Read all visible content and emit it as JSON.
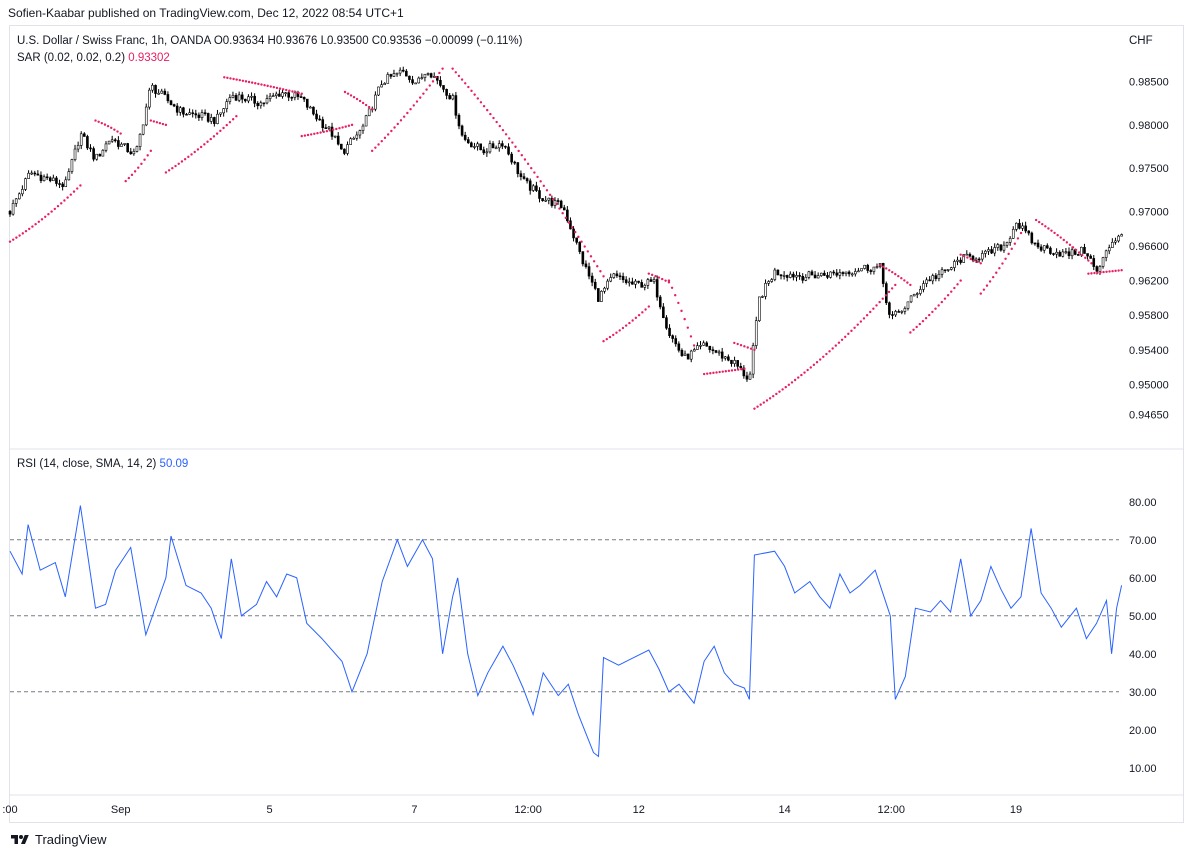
{
  "header": {
    "publisher": "Sofien-Kaabar published on TradingView.com, Dec 12, 2022 08:54 UTC+1"
  },
  "legend": {
    "symbol": "U.S. Dollar / Swiss Franc, 1h, OANDA",
    "ohlc": "O0.93634  H0.93676  L0.93500  C0.93536  −0.00099 (−0.11%)",
    "sar_label": "SAR (0.02, 0.02, 0.2)",
    "sar_value": "0.93302",
    "rsi_label": "RSI (14, close, SMA, 14, 2)",
    "rsi_value": "50.09"
  },
  "currency": "CHF",
  "brand": {
    "name": "TradingView",
    "logo_icon": "tradingview-logo-icon"
  },
  "colors": {
    "candle": "#000000",
    "sar": "#e91e63",
    "rsi": "#2962ff",
    "guide": "#787b86",
    "border": "#e0e3eb"
  },
  "chart_data": [
    {
      "type": "candlestick",
      "title": "U.S. Dollar / Swiss Franc, 1h, OANDA",
      "y_ticks": [
        "0.98500",
        "0.98000",
        "0.97500",
        "0.97000",
        "0.96600",
        "0.96200",
        "0.95800",
        "0.95400",
        "0.95000",
        "0.94650"
      ],
      "ylim": [
        0.9445,
        0.9875
      ],
      "x_ticks": [
        ":00",
        "Sep",
        "5",
        "7",
        "12:00",
        "12",
        "14",
        "12:00",
        "19"
      ],
      "close_path": [
        [
          0,
          0.97
        ],
        [
          0.02,
          0.9745
        ],
        [
          0.055,
          0.973
        ],
        [
          0.07,
          0.979
        ],
        [
          0.085,
          0.976
        ],
        [
          0.1,
          0.9785
        ],
        [
          0.125,
          0.9765
        ],
        [
          0.14,
          0.9845
        ],
        [
          0.17,
          0.9815
        ],
        [
          0.19,
          0.981
        ],
        [
          0.205,
          0.9805
        ],
        [
          0.22,
          0.9835
        ],
        [
          0.25,
          0.9825
        ],
        [
          0.27,
          0.9838
        ],
        [
          0.29,
          0.983
        ],
        [
          0.3,
          0.9815
        ],
        [
          0.32,
          0.979
        ],
        [
          0.33,
          0.9768
        ],
        [
          0.35,
          0.9795
        ],
        [
          0.37,
          0.985
        ],
        [
          0.39,
          0.9862
        ],
        [
          0.405,
          0.9848
        ],
        [
          0.415,
          0.9865
        ],
        [
          0.44,
          0.983
        ],
        [
          0.45,
          0.9785
        ],
        [
          0.47,
          0.977
        ],
        [
          0.49,
          0.978
        ],
        [
          0.51,
          0.9735
        ],
        [
          0.53,
          0.9715
        ],
        [
          0.55,
          0.9705
        ],
        [
          0.57,
          0.964
        ],
        [
          0.585,
          0.96
        ],
        [
          0.6,
          0.9625
        ],
        [
          0.62,
          0.9615
        ],
        [
          0.64,
          0.9618
        ],
        [
          0.655,
          0.956
        ],
        [
          0.67,
          0.953
        ],
        [
          0.69,
          0.9545
        ],
        [
          0.72,
          0.9525
        ],
        [
          0.735,
          0.9505
        ],
        [
          0.745,
          0.96
        ],
        [
          0.76,
          0.963
        ],
        [
          0.79,
          0.9625
        ],
        [
          0.82,
          0.9628
        ],
        [
          0.85,
          0.9635
        ],
        [
          0.865,
          0.9635
        ],
        [
          0.875,
          0.9575
        ],
        [
          0.89,
          0.959
        ],
        [
          0.91,
          0.962
        ],
        [
          0.93,
          0.963
        ],
        [
          0.945,
          0.9645
        ],
        [
          0.97,
          0.965
        ],
        [
          0.99,
          0.9662
        ],
        [
          1.0,
          0.9688
        ],
        [
          1.02,
          0.966
        ],
        [
          1.05,
          0.965
        ],
        [
          1.07,
          0.9655
        ],
        [
          1.08,
          0.9628
        ],
        [
          1.095,
          0.9665
        ],
        [
          1.105,
          0.9675
        ]
      ]
    },
    {
      "type": "scatter",
      "title": "SAR (0.02, 0.02, 0.2)",
      "value": "0.93302",
      "segments": [
        {
          "from": [
            0,
            0.9665
          ],
          "to": [
            0.07,
            0.973
          ],
          "curve": 0.0015
        },
        {
          "from": [
            0.085,
            0.9805
          ],
          "to": [
            0.11,
            0.979
          ],
          "curve": -0.0004
        },
        {
          "from": [
            0.115,
            0.9735
          ],
          "to": [
            0.14,
            0.977
          ],
          "curve": 0.0008
        },
        {
          "from": [
            0.14,
            0.9805
          ],
          "to": [
            0.155,
            0.98
          ],
          "curve": 0
        },
        {
          "from": [
            0.155,
            0.9745
          ],
          "to": [
            0.225,
            0.981
          ],
          "curve": 0.0012
        },
        {
          "from": [
            0.213,
            0.9855
          ],
          "to": [
            0.29,
            0.9836
          ],
          "curve": -0.0003
        },
        {
          "from": [
            0.29,
            0.9787
          ],
          "to": [
            0.34,
            0.98
          ],
          "curve": 0.0003
        },
        {
          "from": [
            0.333,
            0.9838
          ],
          "to": [
            0.36,
            0.9818
          ],
          "curve": -0.0003
        },
        {
          "from": [
            0.36,
            0.977
          ],
          "to": [
            0.43,
            0.9865
          ],
          "curve": 0.0015
        },
        {
          "from": [
            0.44,
            0.9865
          ],
          "to": [
            0.59,
            0.9625
          ],
          "curve": -0.004
        },
        {
          "from": [
            0.59,
            0.955
          ],
          "to": [
            0.635,
            0.959
          ],
          "curve": 0.0008
        },
        {
          "from": [
            0.635,
            0.9628
          ],
          "to": [
            0.655,
            0.9618
          ],
          "curve": -0.0002
        },
        {
          "from": [
            0.655,
            0.962
          ],
          "to": [
            0.68,
            0.9545
          ],
          "curve": -0.001
        },
        {
          "from": [
            0.69,
            0.9512
          ],
          "to": [
            0.73,
            0.9518
          ],
          "curve": 0
        },
        {
          "from": [
            0.72,
            0.9548
          ],
          "to": [
            0.74,
            0.954
          ],
          "curve": 0
        },
        {
          "from": [
            0.74,
            0.9472
          ],
          "to": [
            0.88,
            0.9615
          ],
          "curve": 0.004
        },
        {
          "from": [
            0.865,
            0.9638
          ],
          "to": [
            0.895,
            0.9615
          ],
          "curve": -0.0004
        },
        {
          "from": [
            0.895,
            0.956
          ],
          "to": [
            0.945,
            0.962
          ],
          "curve": 0.001
        },
        {
          "from": [
            0.945,
            0.965
          ],
          "to": [
            0.965,
            0.964
          ],
          "curve": 0
        },
        {
          "from": [
            0.965,
            0.9605
          ],
          "to": [
            1.005,
            0.9675
          ],
          "curve": 0.0012
        },
        {
          "from": [
            1.02,
            0.969
          ],
          "to": [
            1.075,
            0.964
          ],
          "curve": -0.0008
        },
        {
          "from": [
            1.072,
            0.9628
          ],
          "to": [
            1.105,
            0.9632
          ],
          "curve": 0
        }
      ]
    },
    {
      "type": "line",
      "title": "RSI (14, close, SMA, 14, 2)",
      "value": "50.09",
      "y_ticks": [
        "80.00",
        "70.00",
        "60.00",
        "50.00",
        "40.00",
        "30.00",
        "20.00",
        "10.00"
      ],
      "ylim": [
        6,
        86
      ],
      "reference_lines": [
        70,
        50,
        30
      ],
      "points": [
        [
          0,
          67
        ],
        [
          0.012,
          61
        ],
        [
          0.018,
          74
        ],
        [
          0.03,
          62
        ],
        [
          0.045,
          64
        ],
        [
          0.055,
          55
        ],
        [
          0.07,
          79
        ],
        [
          0.085,
          52
        ],
        [
          0.095,
          53
        ],
        [
          0.105,
          62
        ],
        [
          0.12,
          68
        ],
        [
          0.135,
          45
        ],
        [
          0.155,
          60
        ],
        [
          0.16,
          71
        ],
        [
          0.175,
          58
        ],
        [
          0.19,
          56
        ],
        [
          0.2,
          52
        ],
        [
          0.21,
          44
        ],
        [
          0.22,
          65
        ],
        [
          0.23,
          50
        ],
        [
          0.245,
          53
        ],
        [
          0.255,
          59
        ],
        [
          0.265,
          55
        ],
        [
          0.275,
          61
        ],
        [
          0.285,
          60
        ],
        [
          0.295,
          48
        ],
        [
          0.31,
          44
        ],
        [
          0.33,
          38
        ],
        [
          0.34,
          30
        ],
        [
          0.355,
          40
        ],
        [
          0.37,
          59
        ],
        [
          0.385,
          70
        ],
        [
          0.395,
          63
        ],
        [
          0.41,
          70
        ],
        [
          0.42,
          65
        ],
        [
          0.43,
          40
        ],
        [
          0.44,
          55
        ],
        [
          0.445,
          60
        ],
        [
          0.455,
          40
        ],
        [
          0.465,
          29
        ],
        [
          0.475,
          35
        ],
        [
          0.49,
          42
        ],
        [
          0.5,
          37
        ],
        [
          0.51,
          31
        ],
        [
          0.52,
          24
        ],
        [
          0.53,
          35
        ],
        [
          0.545,
          29
        ],
        [
          0.555,
          32
        ],
        [
          0.565,
          24
        ],
        [
          0.58,
          14
        ],
        [
          0.585,
          13
        ],
        [
          0.59,
          39
        ],
        [
          0.605,
          37
        ],
        [
          0.62,
          39
        ],
        [
          0.635,
          41
        ],
        [
          0.645,
          36
        ],
        [
          0.655,
          30
        ],
        [
          0.665,
          32
        ],
        [
          0.68,
          27
        ],
        [
          0.69,
          38
        ],
        [
          0.7,
          42
        ],
        [
          0.71,
          35
        ],
        [
          0.72,
          32
        ],
        [
          0.73,
          31
        ],
        [
          0.735,
          28
        ],
        [
          0.74,
          66
        ],
        [
          0.76,
          67
        ],
        [
          0.77,
          63
        ],
        [
          0.78,
          56
        ],
        [
          0.795,
          59
        ],
        [
          0.805,
          55
        ],
        [
          0.815,
          52
        ],
        [
          0.825,
          61
        ],
        [
          0.835,
          56
        ],
        [
          0.845,
          58
        ],
        [
          0.86,
          62
        ],
        [
          0.875,
          50
        ],
        [
          0.88,
          28
        ],
        [
          0.89,
          34
        ],
        [
          0.9,
          52
        ],
        [
          0.915,
          51
        ],
        [
          0.925,
          54
        ],
        [
          0.935,
          51
        ],
        [
          0.945,
          65
        ],
        [
          0.955,
          50
        ],
        [
          0.965,
          54
        ],
        [
          0.975,
          63
        ],
        [
          0.985,
          57
        ],
        [
          0.995,
          52
        ],
        [
          1.005,
          55
        ],
        [
          1.015,
          73
        ],
        [
          1.025,
          56
        ],
        [
          1.035,
          52
        ],
        [
          1.045,
          47
        ],
        [
          1.06,
          52
        ],
        [
          1.07,
          44
        ],
        [
          1.08,
          48
        ],
        [
          1.09,
          54
        ],
        [
          1.095,
          40
        ],
        [
          1.1,
          52
        ],
        [
          1.105,
          58
        ]
      ]
    }
  ]
}
